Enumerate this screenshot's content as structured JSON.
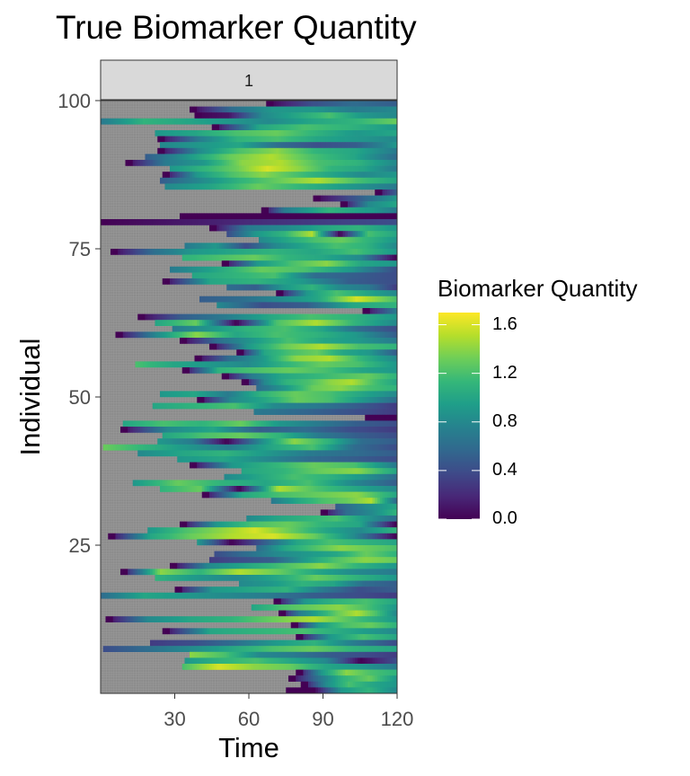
{
  "title": "True Biomarker Quantity",
  "chart_data": {
    "type": "heatmap",
    "title": "True Biomarker Quantity",
    "facet_label": "1",
    "xlabel": "Time",
    "ylabel": "Individual",
    "xlim": [
      0,
      120
    ],
    "ylim": [
      0,
      100
    ],
    "x_ticks": [
      "30",
      "60",
      "90",
      "120"
    ],
    "y_ticks": [
      "25",
      "50",
      "75",
      "100"
    ],
    "x_tick_values": [
      30,
      60,
      90,
      120
    ],
    "y_tick_values": [
      25,
      50,
      75,
      100
    ],
    "n_individuals": 100,
    "n_timepoints": 120,
    "missing_color": "#8c8c8c",
    "grid": "minor white lines on grey panel",
    "colorbar": {
      "title": "Biomarker Quantity",
      "palette": "viridis",
      "range": [
        0.0,
        1.7
      ],
      "ticks": [
        "0.0",
        "0.4",
        "0.8",
        "1.2",
        "1.6"
      ],
      "tick_values": [
        0.0,
        0.4,
        0.8,
        1.2,
        1.6
      ],
      "colors": [
        "#440154",
        "#482878",
        "#3e4a89",
        "#31688e",
        "#26828e",
        "#1f9e89",
        "#35b779",
        "#6ece58",
        "#b5de2b",
        "#fde725"
      ]
    },
    "rows": [
      {
        "individual": 100,
        "start": 68,
        "levels": [
          0.0,
          0.4,
          0.6,
          0.5
        ]
      },
      {
        "individual": 99,
        "start": 37,
        "levels": [
          0.0,
          0.6,
          0.9,
          0.9,
          0.7,
          0.8
        ]
      },
      {
        "individual": 98,
        "start": 39,
        "levels": [
          0.0,
          0.1,
          0.8,
          1.0,
          1.2,
          0.9,
          0.8
        ]
      },
      {
        "individual": 97,
        "start": 1,
        "levels": [
          0.7,
          1.1,
          1.0,
          0.9,
          0.8,
          1.0,
          1.1,
          1.3
        ]
      },
      {
        "individual": 96,
        "start": 46,
        "levels": [
          0.0,
          1.0,
          1.2,
          1.1,
          0.9
        ]
      },
      {
        "individual": 95,
        "start": 23,
        "levels": [
          0.9,
          1.0,
          1.2,
          1.3,
          1.1,
          0.9,
          1.0
        ]
      },
      {
        "individual": 94,
        "start": 24,
        "levels": [
          0.0,
          0.7,
          1.1,
          1.2,
          1.0,
          0.9,
          0.8
        ]
      },
      {
        "individual": 93,
        "start": 25,
        "levels": [
          0.8,
          0.9,
          1.0,
          0.6,
          0.4,
          0.5,
          0.9
        ]
      },
      {
        "individual": 92,
        "start": 24,
        "levels": [
          0.0,
          0.8,
          1.2,
          1.4,
          1.1,
          1.0,
          0.7
        ]
      },
      {
        "individual": 91,
        "start": 19,
        "levels": [
          0.5,
          0.9,
          1.3,
          1.5,
          1.2,
          1.0,
          0.6
        ]
      },
      {
        "individual": 90,
        "start": 11,
        "levels": [
          0.0,
          0.7,
          0.9,
          1.4,
          1.5,
          1.2,
          1.1,
          0.8
        ]
      },
      {
        "individual": 89,
        "start": 29,
        "levels": [
          0.9,
          1.1,
          1.3,
          1.6,
          1.4,
          1.1,
          1.0,
          0.7
        ]
      },
      {
        "individual": 88,
        "start": 26,
        "levels": [
          0.0,
          0.9,
          1.2,
          1.4,
          1.2,
          1.0,
          0.8,
          0.9
        ]
      },
      {
        "individual": 87,
        "start": 25,
        "levels": [
          0.5,
          0.8,
          1.1,
          1.3,
          1.5,
          1.2,
          1.0
        ]
      },
      {
        "individual": 86,
        "start": 27,
        "levels": [
          0.8,
          1.0,
          1.3,
          1.1,
          0.9,
          0.7
        ]
      },
      {
        "individual": 85,
        "start": 112,
        "levels": [
          0.0,
          0.5
        ]
      },
      {
        "individual": 84,
        "start": 87,
        "levels": [
          0.0,
          0.9
        ]
      },
      {
        "individual": 83,
        "start": 98,
        "levels": [
          0.0,
          0.8,
          1.0
        ]
      },
      {
        "individual": 82,
        "start": 66,
        "levels": [
          0.0,
          0.7,
          0.9,
          1.1,
          1.0,
          0.9,
          0.7
        ]
      },
      {
        "individual": 81,
        "start": 33,
        "levels": [
          0.0
        ]
      },
      {
        "individual": 80,
        "start": 1,
        "levels": [
          0.0,
          0.4
        ]
      },
      {
        "individual": 79,
        "start": 45,
        "levels": [
          0.0,
          0.7,
          0.8,
          1.0,
          1.1,
          0.9
        ]
      },
      {
        "individual": 78,
        "start": 52,
        "levels": [
          0.4,
          0.9,
          1.1,
          1.5,
          0.0,
          1.2,
          1.0
        ]
      },
      {
        "individual": 77,
        "start": 65,
        "levels": [
          0.8,
          1.0,
          1.2,
          1.3,
          1.1,
          0.9
        ]
      },
      {
        "individual": 76,
        "start": 35,
        "levels": [
          0.7,
          0.9,
          0.4,
          0.8,
          1.0,
          1.2,
          1.1,
          0.8
        ]
      },
      {
        "individual": 75,
        "start": 5,
        "levels": [
          0.0,
          0.6,
          0.9,
          1.0,
          1.1,
          1.0,
          1.2,
          0.9
        ]
      },
      {
        "individual": 74,
        "start": 34,
        "levels": [
          1.1,
          1.2,
          1.3,
          1.1,
          1.0,
          0.8,
          0.0
        ]
      },
      {
        "individual": 73,
        "start": 50,
        "levels": [
          0.0,
          0.9,
          1.2,
          1.4,
          1.0,
          0.9
        ]
      },
      {
        "individual": 72,
        "start": 29,
        "levels": [
          0.7,
          1.0,
          1.3,
          1.2,
          0.9,
          0.4
        ]
      },
      {
        "individual": 71,
        "start": 38,
        "levels": [
          1.0,
          1.1,
          1.2,
          0.6,
          0.5,
          0.4
        ]
      },
      {
        "individual": 70,
        "start": 26,
        "levels": [
          0.0,
          1.0,
          1.1,
          0.9,
          0.5,
          0.4
        ]
      },
      {
        "individual": 69,
        "start": 52,
        "levels": [
          0.6,
          0.5,
          0.9,
          1.1,
          0.8,
          0.7,
          0.3
        ]
      },
      {
        "individual": 68,
        "start": 72,
        "levels": [
          0.0,
          0.9,
          1.2,
          1.0,
          0.8
        ]
      },
      {
        "individual": 67,
        "start": 41,
        "levels": [
          0.5,
          0.6,
          0.8,
          1.0,
          1.6,
          1.2
        ]
      },
      {
        "individual": 66,
        "start": 48,
        "levels": [
          0.8,
          0.4,
          0.5,
          1.0,
          1.1
        ]
      },
      {
        "individual": 65,
        "start": 107,
        "levels": [
          0.0,
          0.7
        ]
      },
      {
        "individual": 64,
        "start": 16,
        "levels": [
          0.0,
          0.5,
          0.7,
          1.0,
          1.2,
          1.1,
          0.9
        ]
      },
      {
        "individual": 63,
        "start": 23,
        "levels": [
          1.0,
          1.3,
          0.0,
          1.2,
          1.5,
          1.1,
          0.8
        ]
      },
      {
        "individual": 62,
        "start": 30,
        "levels": [
          0.7,
          0.9,
          1.1,
          1.2,
          1.0,
          0.6,
          0.4
        ]
      },
      {
        "individual": 61,
        "start": 7,
        "levels": [
          0.0,
          0.8,
          1.4,
          1.0,
          1.2,
          1.1,
          0.9,
          0.5
        ]
      },
      {
        "individual": 60,
        "start": 33,
        "levels": [
          0.0,
          0.6,
          0.9,
          1.2,
          1.0,
          0.9,
          0.7
        ]
      },
      {
        "individual": 59,
        "start": 45,
        "levels": [
          0.0,
          0.9,
          1.3,
          1.5,
          1.2,
          1.1
        ]
      },
      {
        "individual": 58,
        "start": 56,
        "levels": [
          0.0,
          1.0,
          1.2,
          1.3,
          1.0,
          0.9,
          0.5
        ]
      },
      {
        "individual": 57,
        "start": 39,
        "levels": [
          0.0,
          0.6,
          0.9,
          1.4,
          1.5,
          1.1,
          0.8
        ]
      },
      {
        "individual": 56,
        "start": 15,
        "levels": [
          1.2,
          1.0,
          0.9,
          0.8,
          1.1,
          1.3,
          1.2,
          0.9
        ]
      },
      {
        "individual": 55,
        "start": 34,
        "levels": [
          0.0,
          1.1,
          1.2,
          1.3,
          1.2,
          1.0,
          0.9
        ]
      },
      {
        "individual": 54,
        "start": 50,
        "levels": [
          0.0,
          0.7,
          1.0,
          1.1,
          1.2,
          1.3,
          1.1
        ]
      },
      {
        "individual": 53,
        "start": 58,
        "levels": [
          0.0,
          0.8,
          1.1,
          1.2,
          1.4,
          1.5,
          1.2,
          1.0
        ]
      },
      {
        "individual": 52,
        "start": 64,
        "levels": [
          0.6,
          0.9,
          1.3,
          1.4,
          1.2,
          1.1
        ]
      },
      {
        "individual": 51,
        "start": 25,
        "levels": [
          0.9,
          1.0,
          0.7,
          1.1,
          1.3,
          1.2,
          1.0,
          0.8
        ]
      },
      {
        "individual": 50,
        "start": 40,
        "levels": [
          0.0,
          0.8,
          1.0,
          1.3,
          1.2,
          0.9,
          0.6
        ]
      },
      {
        "individual": 49,
        "start": 22,
        "levels": [
          1.0,
          1.1,
          1.2,
          0.8,
          0.7,
          0.5,
          0.3
        ]
      },
      {
        "individual": 48,
        "start": 63,
        "levels": [
          0.7,
          0.6,
          0.5,
          0.4,
          0.3
        ]
      },
      {
        "individual": 47,
        "start": 108,
        "levels": [
          0.0
        ]
      },
      {
        "individual": 46,
        "start": 10,
        "levels": [
          1.0,
          1.2,
          1.1,
          1.3,
          0.9,
          0.7,
          0.5,
          0.4
        ]
      },
      {
        "individual": 45,
        "start": 9,
        "levels": [
          0.0,
          0.8,
          1.0,
          0.5,
          0.6,
          0.4,
          0.3
        ]
      },
      {
        "individual": 44,
        "start": 26,
        "levels": [
          1.0,
          1.2,
          1.3,
          1.1,
          0.7,
          0.5,
          0.4
        ]
      },
      {
        "individual": 43,
        "start": 24,
        "levels": [
          0.9,
          0.7,
          0.0,
          0.8,
          1.4,
          1.1,
          0.6,
          0.5
        ]
      },
      {
        "individual": 42,
        "start": 2,
        "levels": [
          1.3,
          1.1,
          0.9,
          0.7,
          1.0,
          1.2,
          0.6,
          0.4
        ]
      },
      {
        "individual": 41,
        "start": 16,
        "levels": [
          0.8,
          1.0,
          1.1,
          0.9,
          0.7,
          0.6,
          0.5
        ]
      },
      {
        "individual": 40,
        "start": 32,
        "levels": [
          0.9,
          1.0,
          0.8,
          0.6,
          0.5,
          0.4
        ]
      },
      {
        "individual": 39,
        "start": 37,
        "levels": [
          0.0,
          0.9,
          1.1,
          1.3,
          1.2,
          0.7
        ]
      },
      {
        "individual": 38,
        "start": 58,
        "levels": [
          1.0,
          1.1,
          1.3,
          1.4,
          1.0
        ]
      },
      {
        "individual": 37,
        "start": 51,
        "levels": [
          0.8,
          1.0,
          1.2,
          1.1,
          0.9,
          0.6
        ]
      },
      {
        "individual": 36,
        "start": 14,
        "levels": [
          0.9,
          1.3,
          1.1,
          1.0,
          1.2,
          0.8,
          0.5
        ]
      },
      {
        "individual": 35,
        "start": 25,
        "levels": [
          1.1,
          1.3,
          0.0,
          1.5,
          1.2,
          1.0,
          0.8
        ]
      },
      {
        "individual": 34,
        "start": 42,
        "levels": [
          0.0,
          1.0,
          1.2,
          1.3,
          1.4,
          1.0
        ]
      },
      {
        "individual": 33,
        "start": 70,
        "levels": [
          0.7,
          1.0,
          1.2,
          1.3,
          1.5,
          0.6
        ]
      },
      {
        "individual": 32,
        "start": 96,
        "levels": [
          0.5,
          0.8,
          1.0
        ]
      },
      {
        "individual": 31,
        "start": 90,
        "levels": [
          0.0,
          0.6,
          0.8,
          1.1
        ]
      },
      {
        "individual": 30,
        "start": 60,
        "levels": [
          0.8,
          1.0,
          1.1,
          1.2,
          0.9,
          0.6
        ]
      },
      {
        "individual": 29,
        "start": 33,
        "levels": [
          0.0,
          0.9,
          1.2,
          1.3,
          1.1,
          1.0,
          0.0
        ]
      },
      {
        "individual": 28,
        "start": 20,
        "levels": [
          0.9,
          1.2,
          1.4,
          1.6,
          1.3,
          1.0,
          0.8,
          1.1
        ]
      },
      {
        "individual": 27,
        "start": 4,
        "levels": [
          0.0,
          1.0,
          1.3,
          1.5,
          1.6,
          1.3,
          0.8,
          0.0
        ]
      },
      {
        "individual": 26,
        "start": 40,
        "levels": [
          0.9,
          0.0,
          0.5,
          1.0,
          1.2,
          1.1,
          1.0
        ]
      },
      {
        "individual": 25,
        "start": 64,
        "levels": [
          0.6,
          1.0,
          1.2,
          1.4,
          1.3,
          1.2
        ]
      },
      {
        "individual": 24,
        "start": 47,
        "levels": [
          0.4,
          0.6,
          0.8,
          0.9,
          1.0,
          1.3,
          1.1
        ]
      },
      {
        "individual": 23,
        "start": 45,
        "levels": [
          0.3,
          0.4,
          0.5,
          0.9,
          1.2,
          1.4,
          1.3
        ]
      },
      {
        "individual": 22,
        "start": 29,
        "levels": [
          0.0,
          0.8,
          1.0,
          1.2,
          1.4,
          1.1,
          0.9
        ]
      },
      {
        "individual": 21,
        "start": 9,
        "levels": [
          0.0,
          1.4,
          1.1,
          1.5,
          1.3,
          1.0,
          0.8,
          0.7
        ]
      },
      {
        "individual": 20,
        "start": 23,
        "levels": [
          1.1,
          0.9,
          0.8,
          1.0,
          1.3,
          1.1,
          0.9
        ]
      },
      {
        "individual": 19,
        "start": 57,
        "levels": [
          0.8,
          0.9,
          1.1,
          1.0,
          0.6,
          0.5
        ]
      },
      {
        "individual": 18,
        "start": 31,
        "levels": [
          0.0,
          0.9,
          1.0,
          1.1,
          0.7,
          0.4,
          0.5
        ]
      },
      {
        "individual": 17,
        "start": 1,
        "levels": [
          0.6,
          1.0,
          0.9,
          0.8,
          0.7,
          0.5,
          0.4,
          0.3
        ]
      },
      {
        "individual": 16,
        "start": 71,
        "levels": [
          0.0,
          0.9,
          1.1,
          1.2,
          1.0
        ]
      },
      {
        "individual": 15,
        "start": 62,
        "levels": [
          1.0,
          1.2,
          1.3,
          1.4,
          1.2,
          0.9
        ]
      },
      {
        "individual": 14,
        "start": 73,
        "levels": [
          0.0,
          0.7,
          1.0,
          1.3,
          1.5,
          1.2,
          0.8
        ]
      },
      {
        "individual": 13,
        "start": 3,
        "levels": [
          0.0,
          0.8,
          1.0,
          1.1,
          1.3,
          1.5,
          1.2,
          0.9
        ]
      },
      {
        "individual": 12,
        "start": 78,
        "levels": [
          0.0,
          0.9,
          1.2,
          1.3,
          1.1
        ]
      },
      {
        "individual": 11,
        "start": 26,
        "levels": [
          0.0,
          1.0,
          1.1,
          1.2,
          1.0,
          0.8
        ]
      },
      {
        "individual": 10,
        "start": 80,
        "levels": [
          0.0,
          0.9,
          1.2,
          1.0
        ]
      },
      {
        "individual": 9,
        "start": 21,
        "levels": [
          0.3,
          0.4,
          0.6,
          0.9,
          1.1,
          0.7,
          0.4
        ]
      },
      {
        "individual": 8,
        "start": 2,
        "levels": [
          0.4,
          0.6,
          0.8,
          1.0,
          1.2,
          1.3,
          1.1,
          1.0
        ]
      },
      {
        "individual": 7,
        "start": 37,
        "levels": [
          1.4,
          1.2,
          0.8,
          0.7,
          0.5,
          0.4,
          0.3
        ]
      },
      {
        "individual": 6,
        "start": 35,
        "levels": [
          0.9,
          1.1,
          1.2,
          1.0,
          0.8,
          0.0,
          0.4
        ]
      },
      {
        "individual": 5,
        "start": 34,
        "levels": [
          1.2,
          1.6,
          1.4,
          1.3,
          1.0,
          0.9,
          0.7
        ]
      },
      {
        "individual": 4,
        "start": 80,
        "levels": [
          0.0,
          0.9,
          1.4,
          1.2,
          1.1
        ]
      },
      {
        "individual": 3,
        "start": 77,
        "levels": [
          0.0,
          0.6,
          1.1,
          1.3,
          0.9
        ]
      },
      {
        "individual": 2,
        "start": 82,
        "levels": [
          0.0,
          0.8,
          1.2,
          1.0,
          0.9
        ]
      },
      {
        "individual": 1,
        "start": 76,
        "levels": [
          0.0,
          0.0,
          0.9,
          1.1,
          0.8
        ]
      }
    ]
  }
}
